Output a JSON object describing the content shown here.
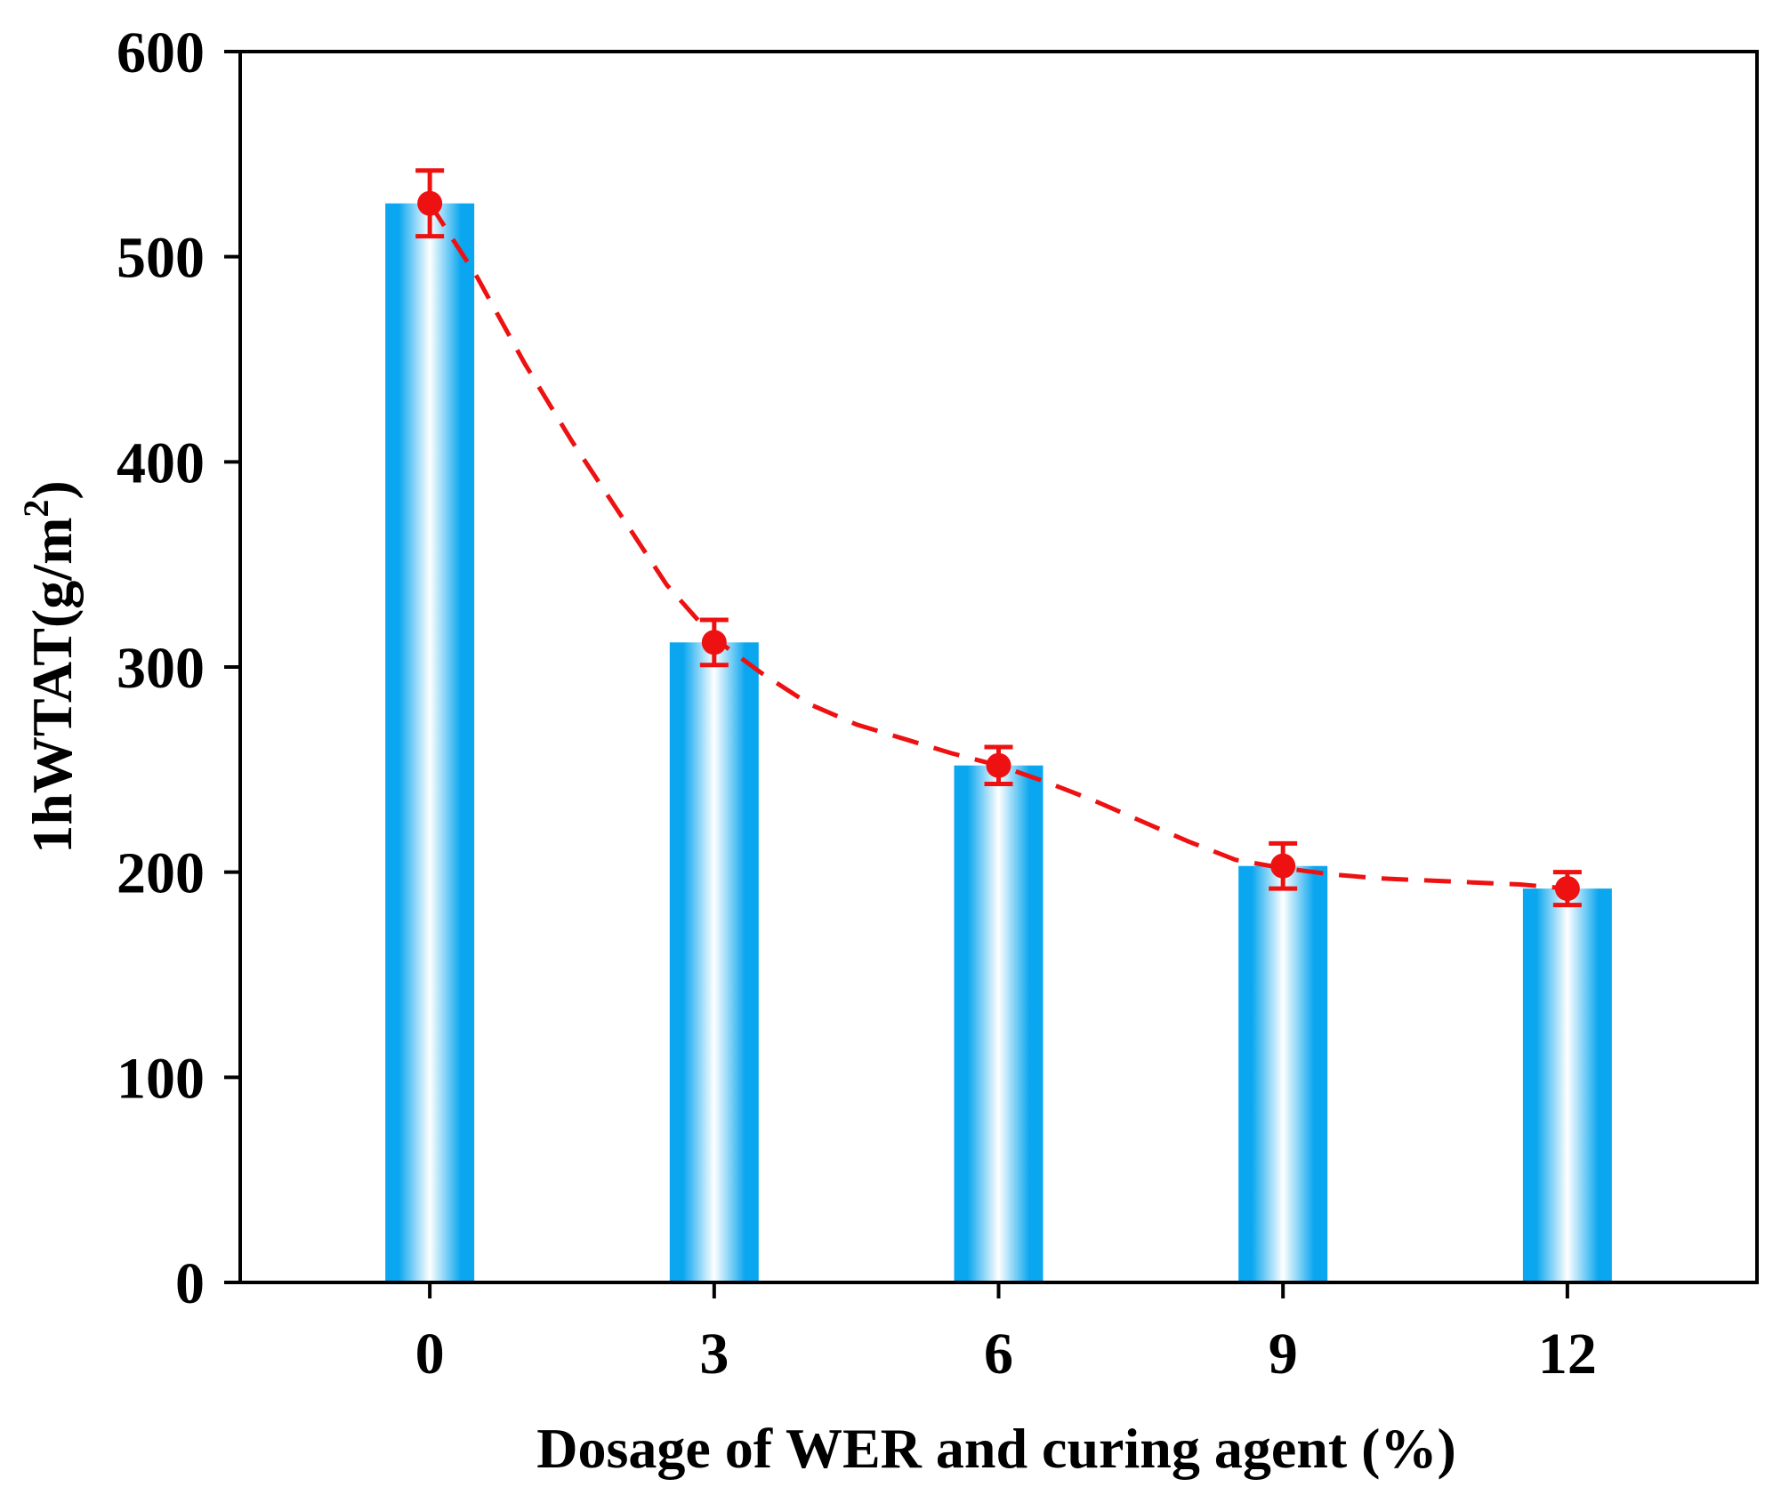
{
  "chart_data": {
    "type": "bar",
    "title": "",
    "xlabel": "Dosage of WER and curing agent (%)",
    "ylabel_main": "1hWTAT(g/m",
    "ylabel_sup": "2",
    "ylabel_close": ")",
    "categories": [
      "0",
      "3",
      "6",
      "9",
      "12"
    ],
    "x": [
      0,
      3,
      6,
      9,
      12
    ],
    "xlim": [
      -2,
      14
    ],
    "ylim": [
      0,
      600
    ],
    "yticks": [
      0,
      100,
      200,
      300,
      400,
      500,
      600
    ],
    "series": [
      {
        "name": "bars",
        "kind": "bar",
        "values": [
          526,
          312,
          252,
          203,
          192
        ]
      },
      {
        "name": "points",
        "kind": "scatter_errorbar",
        "values": [
          526,
          312,
          252,
          203,
          192
        ],
        "errors": [
          16,
          11,
          9,
          11,
          8
        ]
      },
      {
        "name": "trend",
        "kind": "dashed_line",
        "x": [
          0,
          0.5,
          1,
          1.5,
          2,
          2.5,
          3,
          3.5,
          4,
          4.5,
          5,
          5.5,
          6,
          6.5,
          7,
          7.5,
          8,
          8.5,
          9,
          9.5,
          10,
          10.5,
          11,
          11.5,
          12
        ],
        "values": [
          526,
          490,
          448,
          410,
          375,
          340,
          314,
          297,
          282,
          272,
          265,
          258,
          252,
          244,
          235,
          225,
          215,
          206,
          202,
          199,
          197,
          196,
          195,
          194,
          192
        ]
      }
    ],
    "colors": {
      "bar": "#0aa6ef",
      "bar_center": "#ffffff",
      "point": "#ee1111",
      "trend": "#ee1111",
      "axis": "#000000"
    },
    "grid": false
  }
}
